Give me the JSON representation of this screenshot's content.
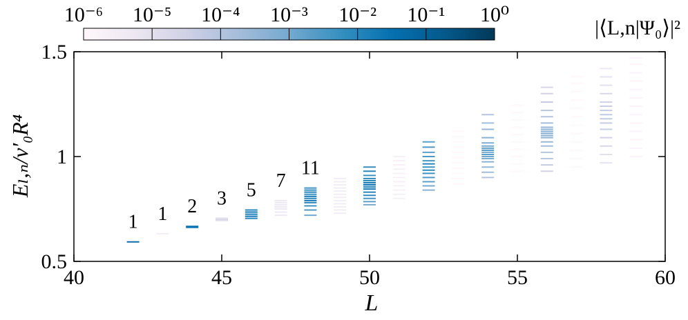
{
  "chart_data": {
    "type": "level-dash",
    "x_label": "L",
    "y_label": "Eₗ,ₙ/v′₀R⁴",
    "colorbar_label": "|⟨L,n|Ψ₀⟩|²",
    "xlim": [
      40,
      60
    ],
    "ylim": [
      0.5,
      1.5
    ],
    "xticks": [
      40,
      45,
      50,
      55,
      60
    ],
    "yticks": [
      0.5,
      1,
      1.5
    ],
    "color_scale": "log",
    "colorlim": [
      1e-06,
      1
    ],
    "colormap": [
      "#fff7fb",
      "#ece7f2",
      "#d0d1e6",
      "#a6bddb",
      "#74a9cf",
      "#3690c0",
      "#0570b0",
      "#045a8d",
      "#023858"
    ],
    "colorticks": [
      {
        "value": 1e-06,
        "label": "10⁻⁶"
      },
      {
        "value": 1e-05,
        "label": "10⁻⁵"
      },
      {
        "value": 0.0001,
        "label": "10⁻⁴"
      },
      {
        "value": 0.001,
        "label": "10⁻³"
      },
      {
        "value": 0.01,
        "label": "10⁻²"
      },
      {
        "value": 0.1,
        "label": "10⁻¹"
      },
      {
        "value": 1,
        "label": "10⁰"
      }
    ],
    "columns": [
      {
        "L": 42,
        "label": "1",
        "E": [
          0.593
        ],
        "overlap": [
          0.05
        ]
      },
      {
        "L": 43,
        "label": "1",
        "E": [
          0.632
        ],
        "overlap": [
          3e-06
        ]
      },
      {
        "L": 44,
        "label": "2",
        "E": [
          0.662,
          0.667
        ],
        "overlap": [
          0.02,
          0.03
        ]
      },
      {
        "L": 45,
        "label": "3",
        "E": [
          0.695,
          0.7,
          0.706
        ],
        "overlap": [
          1e-05,
          2e-05,
          1e-05
        ]
      },
      {
        "L": 46,
        "label": "5",
        "E": [
          0.705,
          0.715,
          0.725,
          0.735,
          0.745
        ],
        "overlap": [
          0.01,
          0.02,
          0.015,
          0.02,
          0.01
        ]
      },
      {
        "L": 47,
        "label": "7",
        "E": [
          0.72,
          0.735,
          0.75,
          0.76,
          0.77,
          0.78,
          0.79
        ],
        "overlap": [
          5e-06,
          5e-06,
          5e-06,
          5e-06,
          5e-06,
          5e-06,
          5e-06
        ]
      },
      {
        "L": 48,
        "label": "11",
        "E": [
          0.72,
          0.745,
          0.765,
          0.78,
          0.79,
          0.8,
          0.81,
          0.82,
          0.83,
          0.84,
          0.85
        ],
        "overlap": [
          0.001,
          0.003,
          0.005,
          0.01,
          0.02,
          0.008,
          0.02,
          0.005,
          0.01,
          0.006,
          0.004
        ]
      },
      {
        "L": 49,
        "E": [
          0.73,
          0.745,
          0.76,
          0.775,
          0.79,
          0.805,
          0.82,
          0.835,
          0.85,
          0.865,
          0.88,
          0.895
        ],
        "overlap": [
          3e-06,
          3e-06,
          3e-06,
          3e-06,
          3e-06,
          3e-06,
          3e-06,
          3e-06,
          3e-06,
          3e-06,
          3e-06,
          3e-06
        ]
      },
      {
        "L": 50,
        "E": [
          0.77,
          0.785,
          0.8,
          0.815,
          0.83,
          0.845,
          0.855,
          0.865,
          0.875,
          0.885,
          0.895,
          0.91,
          0.93,
          0.95
        ],
        "overlap": [
          0.001,
          0.002,
          0.004,
          0.008,
          0.01,
          0.02,
          0.015,
          0.03,
          0.02,
          0.01,
          0.008,
          0.005,
          0.01,
          0.006
        ]
      },
      {
        "L": 51,
        "E": [
          0.8,
          0.82,
          0.84,
          0.86,
          0.88,
          0.9,
          0.92,
          0.94,
          0.96,
          0.98,
          1.0
        ],
        "overlap": [
          2e-06,
          2e-06,
          2e-06,
          2e-06,
          2e-06,
          2e-06,
          2e-06,
          2e-06,
          2e-06,
          2e-06,
          2e-06
        ]
      },
      {
        "L": 52,
        "E": [
          0.84,
          0.86,
          0.88,
          0.9,
          0.92,
          0.935,
          0.95,
          0.965,
          0.98,
          1.0,
          1.02,
          1.045,
          1.07
        ],
        "overlap": [
          0.0005,
          0.001,
          0.002,
          0.003,
          0.005,
          0.008,
          0.005,
          0.01,
          0.004,
          0.003,
          0.002,
          0.003,
          0.002
        ]
      },
      {
        "L": 53,
        "E": [
          0.87,
          0.895,
          0.92,
          0.945,
          0.97,
          0.995,
          1.02,
          1.045,
          1.07,
          1.095,
          1.12
        ],
        "overlap": [
          1e-06,
          1e-06,
          1e-06,
          1e-06,
          1e-06,
          1e-06,
          1e-06,
          1e-06,
          1e-06,
          1e-06,
          1e-06
        ]
      },
      {
        "L": 54,
        "E": [
          0.9,
          0.925,
          0.95,
          0.975,
          0.99,
          1.0,
          1.01,
          1.02,
          1.03,
          1.04,
          1.05,
          1.065,
          1.09,
          1.13,
          1.16,
          1.2
        ],
        "overlap": [
          0.0001,
          0.0002,
          0.0003,
          0.0005,
          0.0008,
          0.001,
          0.002,
          0.001,
          0.003,
          0.002,
          0.001,
          0.0008,
          0.0005,
          0.0003,
          0.0002,
          0.0001
        ]
      },
      {
        "L": 55,
        "E": [
          0.93,
          0.965,
          1.0,
          1.035,
          1.07,
          1.105,
          1.14,
          1.175,
          1.21,
          1.245
        ],
        "overlap": [
          1e-06,
          1e-06,
          1e-06,
          1e-06,
          1e-06,
          1e-06,
          1e-06,
          1e-06,
          1e-06,
          1e-06
        ]
      },
      {
        "L": 56,
        "E": [
          0.93,
          0.96,
          0.99,
          1.02,
          1.05,
          1.07,
          1.09,
          1.1,
          1.11,
          1.12,
          1.13,
          1.14,
          1.16,
          1.19,
          1.22,
          1.26,
          1.3,
          1.33
        ],
        "overlap": [
          3e-05,
          5e-05,
          8e-05,
          0.0001,
          0.0002,
          0.0003,
          0.0004,
          0.0005,
          0.0006,
          0.0005,
          0.0004,
          0.0003,
          0.0002,
          0.0001,
          8e-05,
          5e-05,
          3e-05,
          2e-05
        ]
      },
      {
        "L": 57,
        "E": [
          0.95,
          0.99,
          1.03,
          1.07,
          1.11,
          1.15,
          1.19,
          1.23,
          1.27,
          1.31,
          1.35,
          1.38
        ],
        "overlap": [
          1e-06,
          1e-06,
          1e-06,
          1e-06,
          1e-06,
          1e-06,
          1e-06,
          1e-06,
          1e-06,
          1e-06,
          1e-06,
          1e-06
        ]
      },
      {
        "L": 58,
        "E": [
          0.97,
          1.01,
          1.05,
          1.09,
          1.13,
          1.16,
          1.18,
          1.2,
          1.22,
          1.24,
          1.26,
          1.3,
          1.34,
          1.38,
          1.42
        ],
        "overlap": [
          8e-06,
          1e-05,
          2e-05,
          3e-05,
          4e-05,
          5e-05,
          6e-05,
          6e-05,
          5e-05,
          4e-05,
          3e-05,
          2e-05,
          1e-05,
          8e-06,
          5e-06
        ]
      },
      {
        "L": 59,
        "E": [
          1.0,
          1.04,
          1.08,
          1.12,
          1.16,
          1.2,
          1.24,
          1.28,
          1.32,
          1.36,
          1.4,
          1.44,
          1.47
        ],
        "overlap": [
          1.5e-06,
          1.5e-06,
          1.5e-06,
          1.5e-06,
          1.5e-06,
          1.5e-06,
          1.5e-06,
          1.5e-06,
          1.5e-06,
          1.5e-06,
          1.5e-06,
          1.5e-06,
          1.5e-06
        ]
      }
    ]
  }
}
